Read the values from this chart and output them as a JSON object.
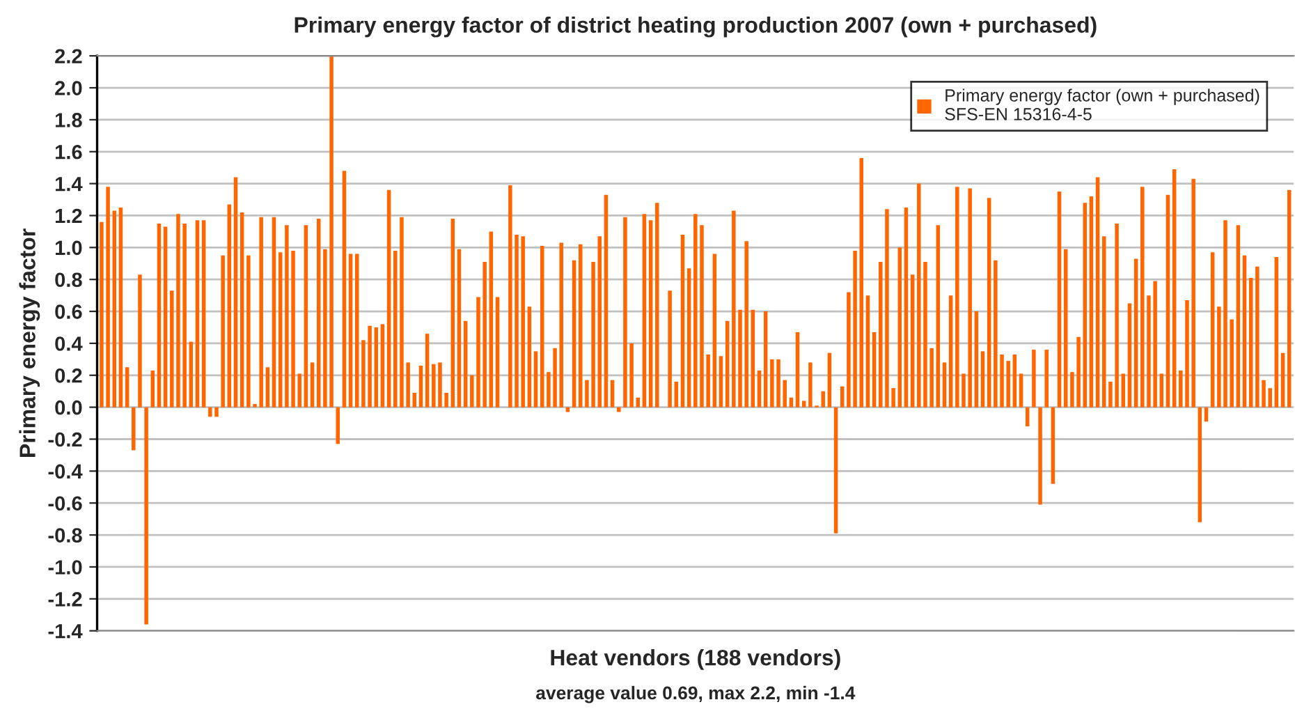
{
  "chart_data": {
    "type": "bar",
    "title": "Primary energy factor of district heating production 2007 (own + purchased)",
    "xlabel": "Heat vendors (188 vendors)",
    "ylabel": "Primary energy factor",
    "annotations": [
      "average value 0.69, max 2.2, min -1.4"
    ],
    "categories": [
      null,
      null,
      null,
      null,
      null,
      null,
      null,
      null,
      null,
      null,
      null,
      null,
      null,
      null,
      null,
      null,
      null,
      null,
      null,
      null,
      null,
      null,
      null,
      null,
      null,
      null,
      null,
      null,
      null,
      null,
      null,
      null,
      null,
      null,
      null,
      null,
      null,
      null,
      null,
      null,
      null,
      null,
      null,
      null,
      null,
      null,
      null,
      null,
      null,
      null,
      null,
      null,
      null,
      null,
      null,
      null,
      null,
      null,
      null,
      null,
      null,
      null,
      null,
      null,
      null,
      null,
      null,
      null,
      null,
      null,
      null,
      null,
      null,
      null,
      null,
      null,
      null,
      null,
      null,
      null,
      null,
      null,
      null,
      null,
      null,
      null,
      null,
      null,
      null,
      null,
      null,
      null,
      null,
      null,
      null,
      null,
      null,
      null,
      null,
      null,
      null,
      null,
      null,
      null,
      null,
      null,
      null,
      null,
      null,
      null,
      null,
      null,
      null,
      null,
      null,
      null,
      null,
      null,
      null,
      null,
      null,
      null,
      null,
      null,
      null,
      null,
      null,
      null,
      null,
      null,
      null,
      null,
      null,
      null,
      null,
      null,
      null,
      null,
      null,
      null,
      null,
      null,
      null,
      null,
      null,
      null,
      null,
      null,
      null,
      null,
      null,
      null,
      null,
      null,
      null,
      null,
      null,
      null,
      null,
      null,
      null,
      null,
      null,
      null,
      null,
      null,
      null,
      null,
      null,
      null,
      null,
      null,
      null,
      null,
      null,
      null,
      null,
      null,
      null,
      null,
      null,
      null,
      null,
      null,
      null,
      null,
      null
    ],
    "series": [
      {
        "name": "Primary energy factor (own + purchased)\nSFS-EN 15316-4-5",
        "color": "#ff6600",
        "values": [
          1.16,
          1.38,
          1.23,
          1.25,
          0.25,
          -0.27,
          0.83,
          -1.36,
          0.23,
          1.15,
          1.13,
          0.73,
          1.21,
          1.15,
          0.41,
          1.17,
          1.17,
          -0.06,
          -0.06,
          0.95,
          1.27,
          1.44,
          1.22,
          0.95,
          0.02,
          1.19,
          0.25,
          1.19,
          0.97,
          1.14,
          0.98,
          0.21,
          1.14,
          0.28,
          1.18,
          0.99,
          2.2,
          -0.23,
          1.48,
          0.96,
          0.96,
          0.42,
          0.51,
          0.5,
          0.52,
          1.36,
          0.98,
          1.19,
          0.28,
          0.09,
          0.26,
          0.46,
          0.27,
          0.28,
          0.09,
          1.18,
          0.99,
          0.54,
          0.2,
          0.69,
          0.91,
          1.1,
          0.69,
          0,
          1.39,
          1.08,
          1.07,
          0.63,
          0.35,
          1.01,
          0.22,
          0.37,
          1.03,
          -0.03,
          0.92,
          1.02,
          0.17,
          0.91,
          1.07,
          1.33,
          0.17,
          -0.03,
          1.19,
          0.4,
          0.06,
          1.21,
          1.17,
          1.28,
          0,
          0.73,
          0.16,
          1.08,
          0.87,
          1.21,
          1.14,
          0.33,
          0.96,
          0.32,
          0.54,
          1.23,
          0.61,
          1.04,
          0.61,
          0.23,
          0.6,
          0.3,
          0.3,
          0.17,
          0.06,
          0.47,
          0.04,
          0.28,
          0.01,
          0.1,
          0.34,
          -0.79,
          0.13,
          0.72,
          0.98,
          1.56,
          0.7,
          0.47,
          0.91,
          1.24,
          0.12,
          1.0,
          1.25,
          0.83,
          1.4,
          0.91,
          0.37,
          1.14,
          0.28,
          0.7,
          1.38,
          0.21,
          1.37,
          0.6,
          0.35,
          1.31,
          0.92,
          0.33,
          0.29,
          0.33,
          0.21,
          -0.12,
          0.36,
          -0.61,
          0.36,
          -0.48,
          1.35,
          0.99,
          0.22,
          0.44,
          1.28,
          1.32,
          1.44,
          1.07,
          0.16,
          1.15,
          0.21,
          0.65,
          0.93,
          1.38,
          0.7,
          0.79,
          0.21,
          1.33,
          1.49,
          0.23,
          0.67,
          1.43,
          -0.72,
          -0.09,
          0.97,
          0.63,
          1.17,
          0.55,
          1.14,
          0.95,
          0.81,
          0.88,
          0.17,
          0.12,
          0.94,
          0.34,
          1.36
        ]
      }
    ],
    "ylim": [
      -1.4,
      2.2
    ],
    "yticks": [
      {
        "value": -1.4,
        "label": "-1.4"
      },
      {
        "value": -1.2,
        "label": "-1.2"
      },
      {
        "value": -1.0,
        "label": "-1.0"
      },
      {
        "value": -0.8,
        "label": "-0.8"
      },
      {
        "value": -0.6,
        "label": "-0.6"
      },
      {
        "value": -0.4,
        "label": "-0.4"
      },
      {
        "value": -0.2,
        "label": "-0.2"
      },
      {
        "value": 0,
        "label": "0.0"
      },
      {
        "value": 0.2,
        "label": "0.2"
      },
      {
        "value": 0.4,
        "label": "0.4"
      },
      {
        "value": 0.6,
        "label": "0.6"
      },
      {
        "value": 0.8,
        "label": "0.8"
      },
      {
        "value": 1.0,
        "label": "1.0"
      },
      {
        "value": 1.2,
        "label": "1.2"
      },
      {
        "value": 1.4,
        "label": "1.4"
      },
      {
        "value": 1.6,
        "label": "1.6"
      },
      {
        "value": 1.8,
        "label": "1.8"
      },
      {
        "value": 2.0,
        "label": "2.0"
      },
      {
        "value": 2.2,
        "label": "2.2"
      }
    ],
    "grid": "y",
    "legend": "top right"
  }
}
